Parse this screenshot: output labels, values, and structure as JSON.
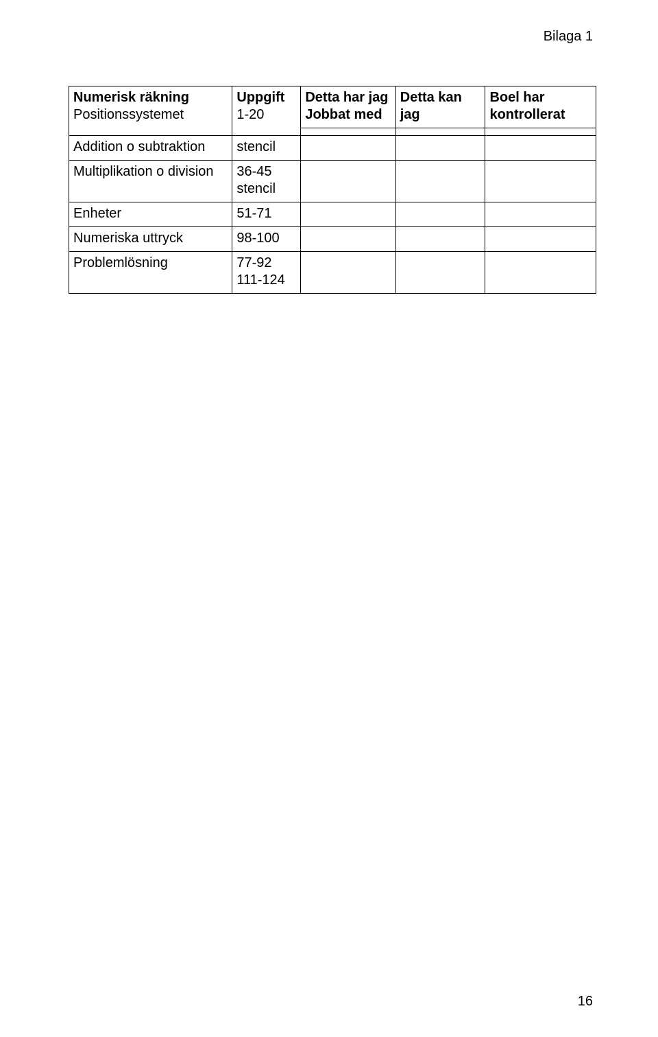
{
  "annotation": "Bilaga 1",
  "page_number": "16",
  "table": {
    "border_color": "#000000",
    "background_color": "#ffffff",
    "text_color": "#000000",
    "font_size_pt": 15,
    "column_widths_pct": [
      31,
      13,
      18,
      17,
      21
    ],
    "columns": [
      {
        "label": "Numerisk räkning",
        "bold": true
      },
      {
        "label": "Uppgift",
        "bold": true
      },
      {
        "label": "Detta har jag\nJobbat med",
        "bold": true
      },
      {
        "label": "Detta kan jag",
        "bold": true
      },
      {
        "label": "Boel har kontrollerat",
        "bold": true
      }
    ],
    "rows": [
      {
        "c0": " Positionssystemet",
        "c1": "1-20",
        "c2": "",
        "c3": "",
        "c4": "",
        "merged_with_header": true
      },
      {
        "c0": "Addition o subtraktion",
        "c1": "stencil",
        "c2": "",
        "c3": "",
        "c4": ""
      },
      {
        "c0": "Multiplikation o division",
        "c1": "36-45\nstencil",
        "c2": "",
        "c3": "",
        "c4": ""
      },
      {
        "c0": "Enheter",
        "c1": "51-71",
        "c2": "",
        "c3": "",
        "c4": ""
      },
      {
        "c0": "Numeriska uttryck",
        "c1": "98-100",
        "c2": "",
        "c3": "",
        "c4": ""
      },
      {
        "c0": "Problemlösning",
        "c1": "77-92\n111-124",
        "c2": "",
        "c3": "",
        "c4": ""
      }
    ]
  }
}
